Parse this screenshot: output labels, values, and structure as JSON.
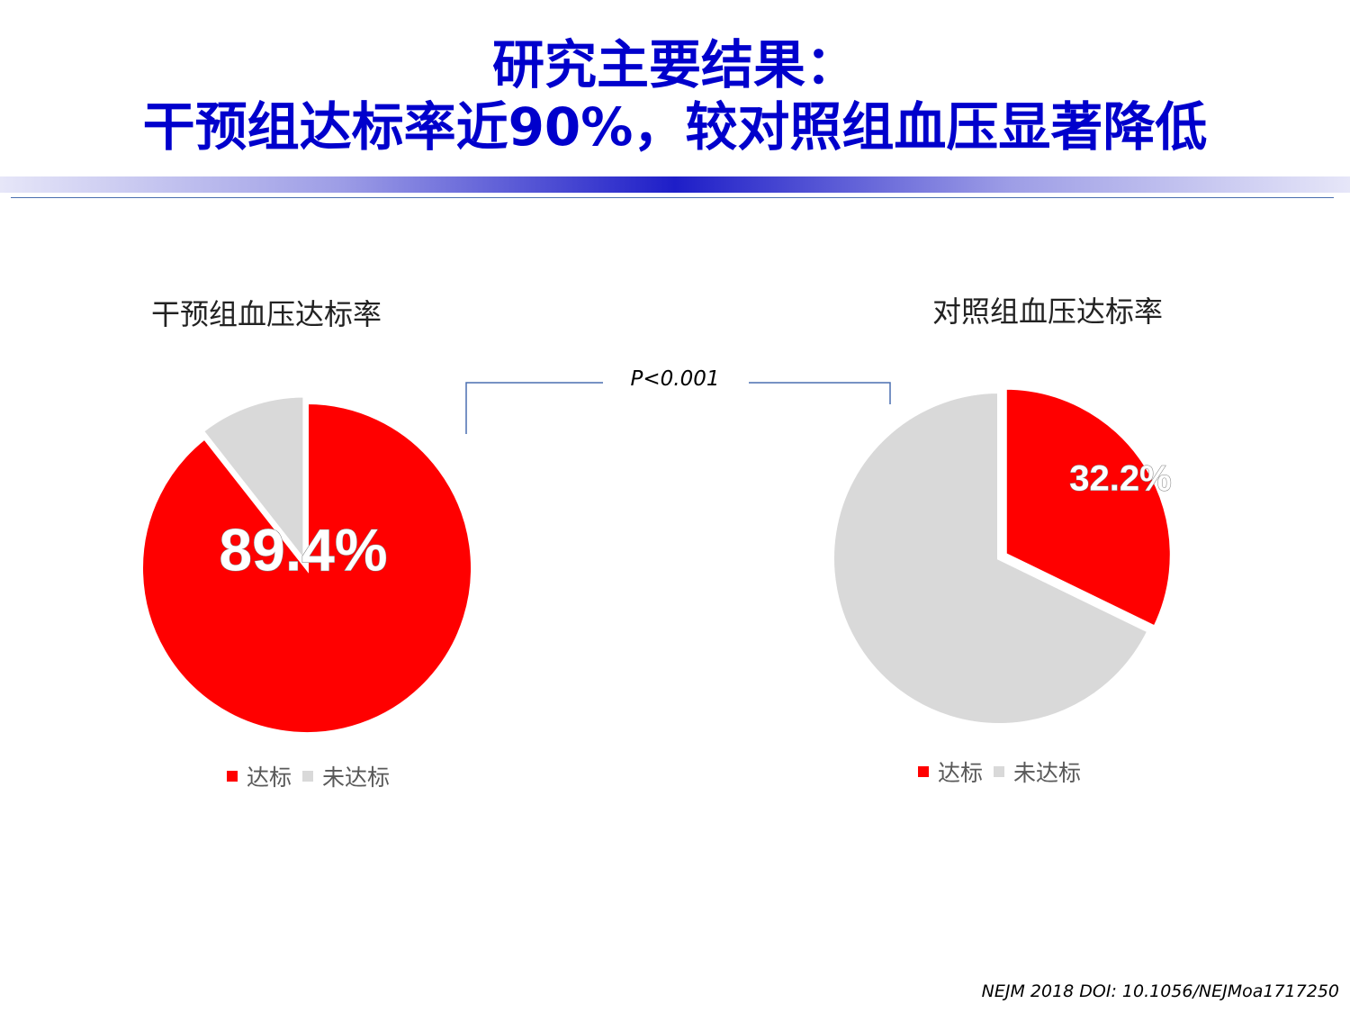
{
  "header": {
    "title_line1": "研究主要结果：",
    "title_line2": "干预组达标率近90%，较对照组血压显著降低"
  },
  "comparison": {
    "p_value": "P<0.001"
  },
  "source": "NEJM 2018 DOI: 10.1056/NEJMoa1717250",
  "colors": {
    "achieved": "#ff0000",
    "not_achieved": "#d9d9d9",
    "title": "#0000cc"
  },
  "chart_data": [
    {
      "type": "pie",
      "title": "干预组血压达标率",
      "categories": [
        "达标",
        "未达标"
      ],
      "values": [
        89.4,
        10.6
      ],
      "data_label": "89.4%",
      "legend_position": "bottom"
    },
    {
      "type": "pie",
      "title": "对照组血压达标率",
      "categories": [
        "达标",
        "未达标"
      ],
      "values": [
        32.2,
        67.8
      ],
      "data_label": "32.2%",
      "legend_position": "bottom"
    }
  ]
}
